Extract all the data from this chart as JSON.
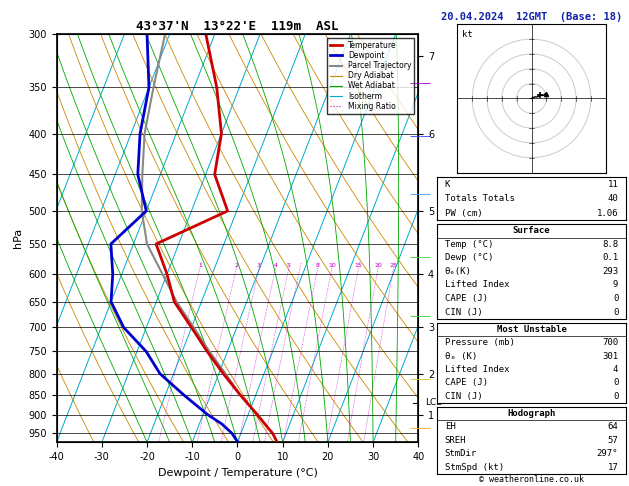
{
  "title_left": "43°37'N  13°22'E  119m  ASL",
  "title_right": "20.04.2024  12GMT  (Base: 18)",
  "xlabel": "Dewpoint / Temperature (°C)",
  "ylabel_left": "hPa",
  "pressure_levels": [
    300,
    350,
    400,
    450,
    500,
    550,
    600,
    650,
    700,
    750,
    800,
    850,
    900,
    950
  ],
  "temp_range": [
    -40,
    40
  ],
  "pres_range": [
    300,
    975
  ],
  "mixing_ratios": [
    1,
    2,
    3,
    4,
    5,
    6,
    8,
    10,
    15,
    20,
    25
  ],
  "mixing_ratio_labels": [
    1,
    2,
    3,
    4,
    5,
    8,
    10,
    15,
    20,
    25
  ],
  "temp_profile_p": [
    975,
    950,
    925,
    900,
    850,
    800,
    750,
    700,
    650,
    600,
    550,
    500,
    450,
    400,
    350,
    300
  ],
  "temp_profile_t": [
    8.8,
    7.0,
    4.5,
    2.0,
    -3.5,
    -9.0,
    -14.5,
    -20.0,
    -26.0,
    -30.0,
    -35.0,
    -22.0,
    -28.0,
    -30.0,
    -35.0,
    -42.0
  ],
  "dewp_profile_p": [
    975,
    950,
    925,
    900,
    850,
    800,
    750,
    700,
    650,
    600,
    550,
    500,
    450,
    400,
    350,
    300
  ],
  "dewp_profile_t": [
    0.1,
    -2.0,
    -5.0,
    -9.0,
    -16.0,
    -23.0,
    -28.0,
    -35.0,
    -40.0,
    -42.0,
    -45.0,
    -40.0,
    -45.0,
    -48.0,
    -50.0,
    -55.0
  ],
  "parcel_p": [
    850,
    800,
    750,
    700,
    650,
    600,
    550,
    500,
    450,
    400,
    350,
    300
  ],
  "parcel_t": [
    -3.5,
    -8.5,
    -14.0,
    -19.5,
    -25.5,
    -31.0,
    -37.0,
    -41.0,
    -44.0,
    -47.0,
    -49.0,
    -51.0
  ],
  "lcl_pressure": 870,
  "km_ticks": [
    1,
    2,
    3,
    4,
    5,
    6,
    7
  ],
  "km_pressures": [
    900,
    800,
    700,
    600,
    500,
    400,
    320
  ],
  "color_temp": "#cc0000",
  "color_dewp": "#0000cc",
  "color_parcel": "#888888",
  "color_dry_adiabat": "#cc8800",
  "color_wet_adiabat": "#00aa00",
  "color_isotherm": "#00aacc",
  "color_mixing": "#cc00cc",
  "color_background": "#ffffff",
  "table_K": "11",
  "table_TT": "40",
  "table_PW": "1.06",
  "surf_temp": "8.8",
  "surf_dewp": "0.1",
  "surf_theta": "293",
  "surf_li": "9",
  "surf_cape": "0",
  "surf_cin": "0",
  "mu_pres": "700",
  "mu_theta": "301",
  "mu_li": "4",
  "mu_cape": "0",
  "mu_cin": "0",
  "hodo_EH": "64",
  "hodo_SREH": "57",
  "hodo_StmDir": "297°",
  "hodo_StmSpd": "17",
  "copyright": "© weatheronline.co.uk"
}
